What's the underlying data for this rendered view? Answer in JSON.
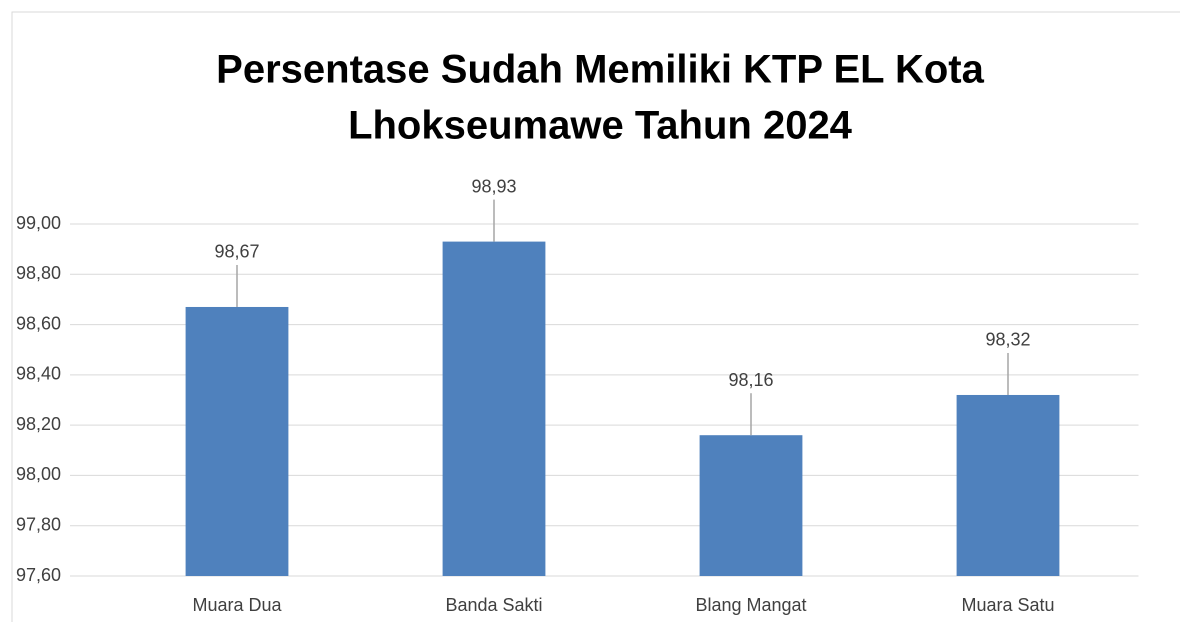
{
  "chart_data": {
    "type": "bar",
    "title": [
      "Persentase Sudah Memiliki KTP EL Kota",
      "Lhokseumawe Tahun 2024"
    ],
    "categories": [
      "Muara Dua",
      "Banda Sakti",
      "Blang Mangat",
      "Muara Satu"
    ],
    "values": [
      98.67,
      98.93,
      98.16,
      98.32
    ],
    "value_labels": [
      "98,67",
      "98,93",
      "98,16",
      "98,32"
    ],
    "color": "#4f81bd",
    "ylim": [
      97.6,
      99.0
    ],
    "yticks": [
      {
        "value": 97.6,
        "label": "97,60"
      },
      {
        "value": 97.8,
        "label": "97,80"
      },
      {
        "value": 98.0,
        "label": "98,00"
      },
      {
        "value": 98.2,
        "label": "98,20"
      },
      {
        "value": 98.4,
        "label": "98,40"
      },
      {
        "value": 98.6,
        "label": "98,60"
      },
      {
        "value": 98.8,
        "label": "98,80"
      },
      {
        "value": 99.0,
        "label": "99,00"
      }
    ],
    "grid": true
  }
}
